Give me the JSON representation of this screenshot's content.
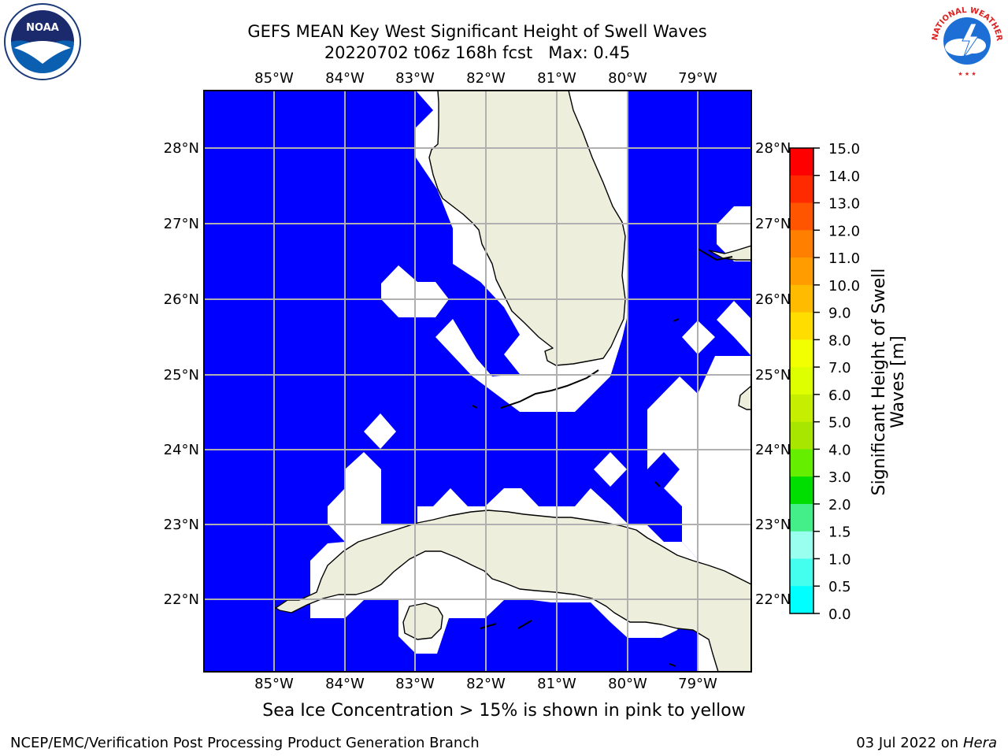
{
  "title_line1": "GEFS MEAN Key West Significant Height of Swell Waves",
  "title_line2": "20220702 t06z 168h fcst",
  "max_label": "Max: 0.45",
  "lon_ticks": [
    "85°W",
    "84°W",
    "83°W",
    "82°W",
    "81°W",
    "80°W",
    "79°W"
  ],
  "lat_ticks": [
    "28°N",
    "27°N",
    "26°N",
    "25°N",
    "24°N",
    "23°N",
    "22°N"
  ],
  "colorbar": {
    "label_line1": "Significant Height of Swell",
    "label_line2": "Waves [m]",
    "ticks": [
      "15.0",
      "14.0",
      "13.0",
      "12.0",
      "11.0",
      "10.0",
      "9.0",
      "8.0",
      "7.0",
      "6.0",
      "5.0",
      "4.0",
      "3.0",
      "2.0",
      "1.5",
      "1.0",
      "0.5",
      "0.0"
    ],
    "colors": [
      "#ff0000",
      "#ff2a00",
      "#ff5500",
      "#ff7f00",
      "#ff9d00",
      "#ffbb00",
      "#ffdd00",
      "#f2ff00",
      "#ddff00",
      "#c6ee00",
      "#a8e600",
      "#66ee00",
      "#00dd00",
      "#44ee88",
      "#99ffee",
      "#44ffee",
      "#00ffff",
      "#0088ff",
      "#0000ff"
    ]
  },
  "sea_ice_note": "Sea Ice Concentration > 15% is shown in pink to yellow",
  "footer_left": "NCEP/EMC/Verification Post Processing Product Generation Branch",
  "footer_date": "03 Jul 2022 on",
  "footer_host": "Hera",
  "logos": {
    "noaa_text": "NOAA",
    "nws_text": "NATIONAL WEATHER SERVICE"
  },
  "colors": {
    "ocean": "#0000ff",
    "land": "#eeeedd",
    "grid": "#b0b0b0"
  }
}
